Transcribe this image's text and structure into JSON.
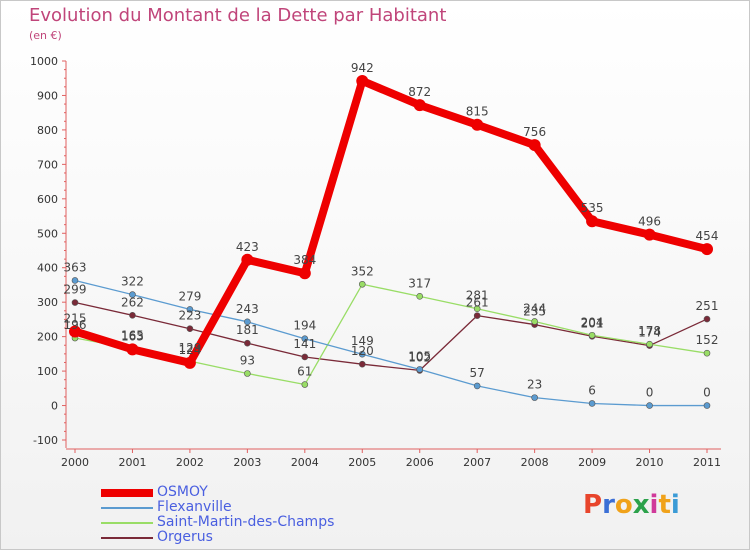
{
  "title": "Evolution du Montant de la Dette par Habitant",
  "subtitle": "(en €)",
  "brand": {
    "text": "Proxiti",
    "letter_colors": [
      "#e8452c",
      "#3b6fd6",
      "#f0a21a",
      "#2ca24b",
      "#d03a9a",
      "#f0a21a",
      "#3b9bd6"
    ]
  },
  "chart_data": {
    "type": "line",
    "x": [
      "2000",
      "2001",
      "2002",
      "2003",
      "2004",
      "2005",
      "2006",
      "2007",
      "2008",
      "2009",
      "2010",
      "2011"
    ],
    "ylim": [
      -100,
      1000
    ],
    "yticks": [
      "-100",
      "0",
      "100",
      "200",
      "300",
      "400",
      "500",
      "600",
      "700",
      "800",
      "900",
      "1000"
    ],
    "grid": false,
    "legend_position": "bottom-left",
    "series": [
      {
        "name": "OSMOY",
        "color": "#ee0000",
        "values": [
          215,
          163,
          124,
          423,
          384,
          942,
          872,
          815,
          756,
          535,
          496,
          454
        ]
      },
      {
        "name": "Flexanville",
        "color": "#5b9bd0",
        "values": [
          363,
          322,
          279,
          243,
          194,
          149,
          105,
          57,
          23,
          6,
          0,
          0
        ]
      },
      {
        "name": "Saint-Martin-des-Champs",
        "color": "#99dd66",
        "values": [
          196,
          165,
          129,
          93,
          61,
          352,
          317,
          281,
          244,
          204,
          178,
          152
        ]
      },
      {
        "name": "Orgerus",
        "color": "#7a2a38",
        "values": [
          299,
          262,
          223,
          181,
          141,
          120,
          102,
          261,
          235,
          201,
          174,
          251
        ]
      }
    ]
  }
}
